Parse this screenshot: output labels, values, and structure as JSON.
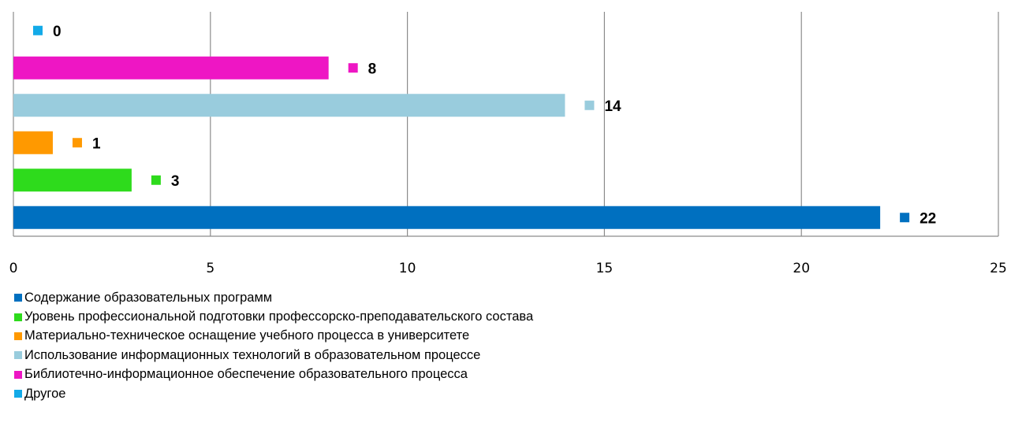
{
  "chart_data": {
    "type": "bar",
    "orientation": "horizontal",
    "xlim": [
      0,
      25
    ],
    "x_ticks": [
      0,
      5,
      10,
      15,
      20,
      25
    ],
    "grid": "vertical",
    "legend_position": "bottom",
    "series": [
      {
        "name": "Содержание образовательных программ",
        "value": 22,
        "color": "#0070C0"
      },
      {
        "name": "Уровень профессиональной подготовки профессорско-преподавательского состава",
        "value": 3,
        "color": "#2EDB1C"
      },
      {
        "name": "Материально-техническое оснащение учебного процесса в университете",
        "value": 1,
        "color": "#FF9900"
      },
      {
        "name": "Использование информационных технологий в образовательном процессе",
        "value": 14,
        "color": "#99CCDD"
      },
      {
        "name": "Библиотечно-информационное обеспечение образовательного процесса",
        "value": 8,
        "color": "#EE16C4"
      },
      {
        "name": "Другое",
        "value": 0,
        "color": "#13AAE8"
      }
    ]
  }
}
